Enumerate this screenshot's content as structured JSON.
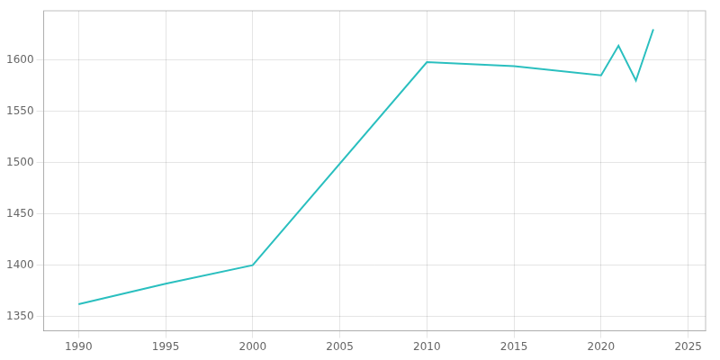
{
  "chart_data": {
    "type": "line",
    "x": [
      1990,
      1995,
      2000,
      2010,
      2015,
      2020,
      2021,
      2022,
      2023
    ],
    "values": [
      1362,
      1382,
      1400,
      1598,
      1594,
      1585,
      1614,
      1580,
      1630
    ],
    "color": "#2abfbf",
    "xlim": [
      1988,
      2026
    ],
    "xticks": [
      1990,
      1995,
      2000,
      2005,
      2010,
      2015,
      2020,
      2025
    ],
    "ylim": [
      1336,
      1648
    ],
    "yticks": [
      1350,
      1400,
      1450,
      1500,
      1550,
      1600
    ],
    "grid": true
  }
}
